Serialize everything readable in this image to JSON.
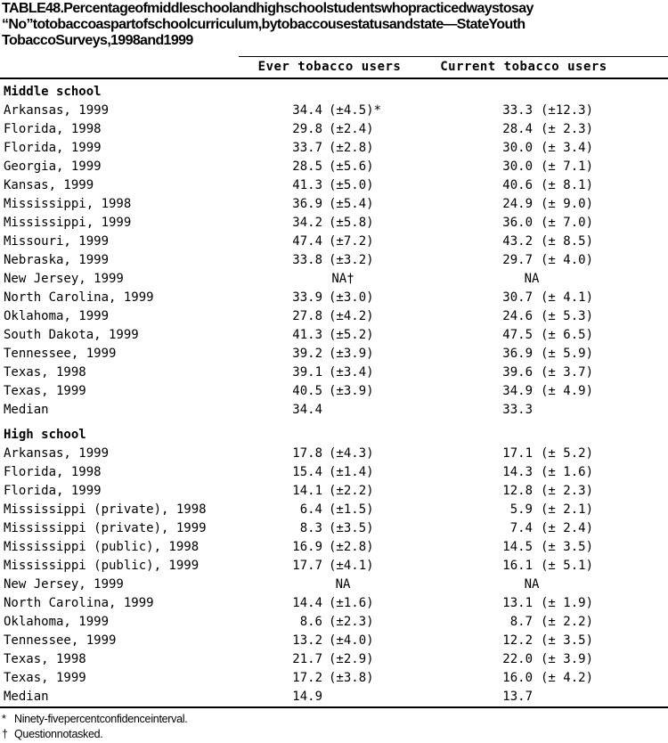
{
  "title_lines": [
    "TABLE 48. Percentage of middle school and high school students who practiced ways to say",
    "“No” to tobacco as part of school curriculum, by tobacco use status and state — State Youth",
    "Tobacco Surveys, 1998 and 1999"
  ],
  "columns": [
    "Ever tobacco users",
    "Current tobacco users"
  ],
  "sections": [
    {
      "label": "Middle school",
      "rows": [
        {
          "state": "Arkansas, 1999",
          "ever": "34.4",
          "ever_ci": "(±4.5)*",
          "current": "33.3",
          "current_ci": "(±12.3)"
        },
        {
          "state": "Florida, 1998",
          "ever": "29.8",
          "ever_ci": "(±2.4)",
          "current": "28.4",
          "current_ci": "(± 2.3)"
        },
        {
          "state": "Florida, 1999",
          "ever": "33.7",
          "ever_ci": "(±2.8)",
          "current": "30.0",
          "current_ci": "(± 3.4)"
        },
        {
          "state": "Georgia, 1999",
          "ever": "28.5",
          "ever_ci": "(±5.6)",
          "current": "30.0",
          "current_ci": "(± 7.1)"
        },
        {
          "state": "Kansas, 1999",
          "ever": "41.3",
          "ever_ci": "(±5.0)",
          "current": "40.6",
          "current_ci": "(± 8.1)"
        },
        {
          "state": "Mississippi, 1998",
          "ever": "36.9",
          "ever_ci": "(±5.4)",
          "current": "24.9",
          "current_ci": "(± 9.0)"
        },
        {
          "state": "Mississippi, 1999",
          "ever": "34.2",
          "ever_ci": "(±5.8)",
          "current": "36.0",
          "current_ci": "(± 7.0)"
        },
        {
          "state": "Missouri, 1999",
          "ever": "47.4",
          "ever_ci": "(±7.2)",
          "current": "43.2",
          "current_ci": "(± 8.5)"
        },
        {
          "state": "Nebraska, 1999",
          "ever": "33.8",
          "ever_ci": "(±3.2)",
          "current": "29.7",
          "current_ci": "(± 4.0)"
        },
        {
          "state": "New Jersey, 1999",
          "ever_na": "NA†",
          "current_na": "NA"
        },
        {
          "state": "North Carolina, 1999",
          "ever": "33.9",
          "ever_ci": "(±3.0)",
          "current": "30.7",
          "current_ci": "(± 4.1)"
        },
        {
          "state": "Oklahoma, 1999",
          "ever": "27.8",
          "ever_ci": "(±4.2)",
          "current": "24.6",
          "current_ci": "(± 5.3)"
        },
        {
          "state": "South Dakota, 1999",
          "ever": "41.3",
          "ever_ci": "(±5.2)",
          "current": "47.5",
          "current_ci": "(± 6.5)"
        },
        {
          "state": "Tennessee, 1999",
          "ever": "39.2",
          "ever_ci": "(±3.9)",
          "current": "36.9",
          "current_ci": "(± 5.9)"
        },
        {
          "state": "Texas, 1998",
          "ever": "39.1",
          "ever_ci": "(±3.4)",
          "current": "39.6",
          "current_ci": "(± 3.7)"
        },
        {
          "state": "Texas, 1999",
          "ever": "40.5",
          "ever_ci": "(±3.9)",
          "current": "34.9",
          "current_ci": "(± 4.9)"
        },
        {
          "state": "Median",
          "ever": "34.4",
          "current": "33.3"
        }
      ]
    },
    {
      "label": "High school",
      "rows": [
        {
          "state": "Arkansas, 1999",
          "ever": "17.8",
          "ever_ci": "(±4.3)",
          "current": "17.1",
          "current_ci": "(± 5.2)"
        },
        {
          "state": "Florida, 1998",
          "ever": "15.4",
          "ever_ci": "(±1.4)",
          "current": "14.3",
          "current_ci": "(± 1.6)"
        },
        {
          "state": "Florida, 1999",
          "ever": "14.1",
          "ever_ci": "(±2.2)",
          "current": "12.8",
          "current_ci": "(± 2.3)"
        },
        {
          "state": "Mississippi (private), 1998",
          "ever": "6.4",
          "ever_ci": "(±1.5)",
          "current": "5.9",
          "current_ci": "(± 2.1)"
        },
        {
          "state": "Mississippi (private), 1999",
          "ever": "8.3",
          "ever_ci": "(±3.5)",
          "current": "7.4",
          "current_ci": "(± 2.4)"
        },
        {
          "state": "Mississippi (public), 1998",
          "ever": "16.9",
          "ever_ci": "(±2.8)",
          "current": "14.5",
          "current_ci": "(± 3.5)"
        },
        {
          "state": "Mississippi (public), 1999",
          "ever": "17.7",
          "ever_ci": "(±4.1)",
          "current": "16.1",
          "current_ci": "(± 5.1)"
        },
        {
          "state": "New Jersey, 1999",
          "ever_na": "NA",
          "current_na": "NA"
        },
        {
          "state": "North Carolina, 1999",
          "ever": "14.4",
          "ever_ci": "(±1.6)",
          "current": "13.1",
          "current_ci": "(± 1.9)"
        },
        {
          "state": "Oklahoma, 1999",
          "ever": "8.6",
          "ever_ci": "(±2.3)",
          "current": "8.7",
          "current_ci": "(± 2.2)"
        },
        {
          "state": "Tennessee, 1999",
          "ever": "13.2",
          "ever_ci": "(±4.0)",
          "current": "12.2",
          "current_ci": "(± 3.5)"
        },
        {
          "state": "Texas, 1998",
          "ever": "21.7",
          "ever_ci": "(±2.9)",
          "current": "22.0",
          "current_ci": "(± 3.9)"
        },
        {
          "state": "Texas, 1999",
          "ever": "17.2",
          "ever_ci": "(±3.8)",
          "current": "16.0",
          "current_ci": "(± 4.2)"
        },
        {
          "state": "Median",
          "ever": "14.9",
          "current": "13.7"
        }
      ]
    }
  ],
  "footnotes": [
    {
      "marker": "*",
      "text": "Ninety-five percent confidence interval."
    },
    {
      "marker": "†",
      "text": "Question not asked."
    }
  ]
}
